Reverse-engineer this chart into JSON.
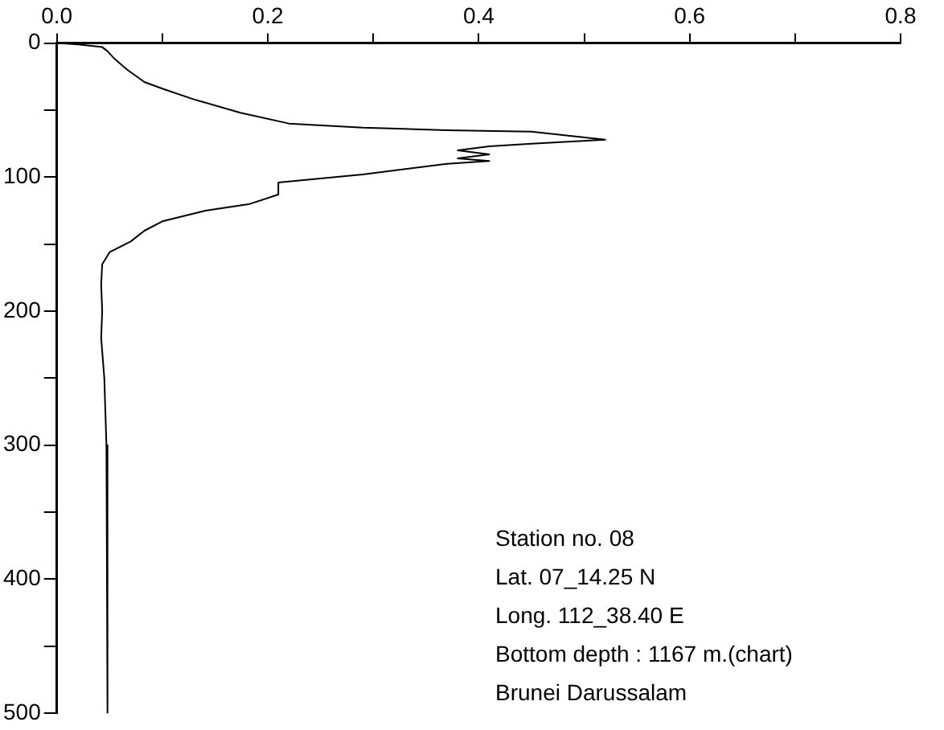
{
  "chart_data": {
    "type": "line",
    "x": [
      0,
      0.02,
      0.043,
      0.048,
      0.055,
      0.067,
      0.083,
      0.1,
      0.13,
      0.174,
      0.22,
      0.29,
      0.37,
      0.45,
      0.52,
      0.45,
      0.41,
      0.38,
      0.41,
      0.38,
      0.41,
      0.37,
      0.29,
      0.21,
      0.21,
      0.183,
      0.141,
      0.1,
      0.083,
      0.07,
      0.05,
      0.043,
      0.042,
      0.043,
      0.042,
      0.045,
      0.047,
      0.048
    ],
    "values": [
      0,
      1,
      3,
      6,
      12,
      20,
      29,
      34,
      42,
      52,
      60,
      63,
      65,
      66,
      72,
      75,
      77,
      80,
      83,
      86,
      88,
      90,
      98,
      104,
      113,
      120,
      125,
      133,
      140,
      148,
      156,
      165,
      180,
      200,
      220,
      250,
      300,
      500
    ],
    "color": "#000000",
    "xlim": [
      0,
      0.8
    ],
    "xticks": [
      "0.0",
      {
        "value": 0.1,
        "label": null
      },
      {
        "value": 0.2,
        "label": "0.2"
      },
      {
        "value": 0.3,
        "label": null
      },
      {
        "value": 0.4,
        "label": "0.4"
      },
      {
        "value": 0.5,
        "label": null
      },
      {
        "value": 0.6,
        "label": "0.6"
      },
      {
        "value": 0.7,
        "label": null
      },
      {
        "value": 0.8,
        "label": "0.8"
      }
    ],
    "ylim": [
      500,
      0
    ],
    "yticks": [
      0,
      {
        "value": 50,
        "label": null
      },
      100,
      {
        "value": 150,
        "label": null
      },
      200,
      {
        "value": 250,
        "label": null
      },
      300,
      {
        "value": 350,
        "label": null
      },
      400,
      {
        "value": 450,
        "label": null
      },
      500
    ],
    "annotations": [
      "Station no. 08",
      "Lat. 07_14.25 N",
      "Long. 112_38.40 E",
      "Bottom depth : 1167 m.(chart)",
      "Brunei Darussalam"
    ],
    "grid": false,
    "legend": false,
    "marker": "none",
    "line_style": "solid"
  }
}
